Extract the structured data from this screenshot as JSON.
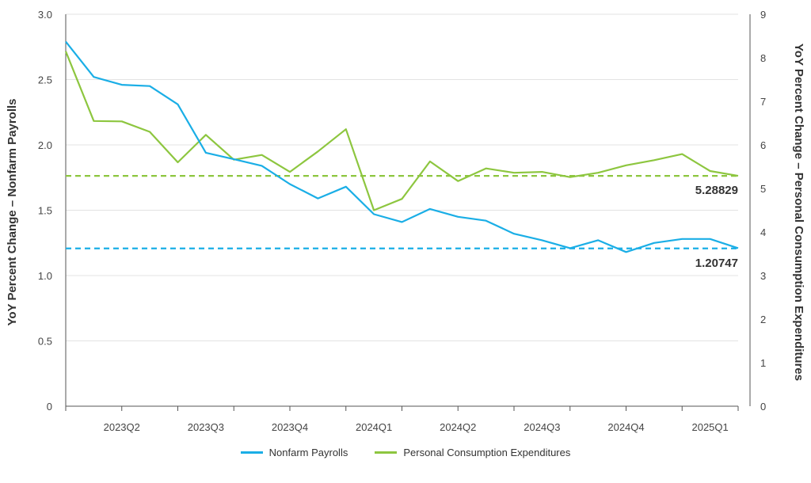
{
  "chart_data": {
    "type": "line",
    "x_tick_labels": [
      "2023Q2",
      "2023Q3",
      "2023Q4",
      "2024Q1",
      "2024Q2",
      "2024Q3",
      "2024Q4",
      "2025Q1"
    ],
    "ylabel_left": "YoY Percent Change – Nonfarm Payrolls",
    "ylabel_right": "YoY Percent Change – Personal Consumption Expenditures",
    "ylim_left": [
      0,
      3
    ],
    "ylim_right": [
      0,
      9
    ],
    "yticks_left": [
      "0",
      "0.5",
      "1.0",
      "1.5",
      "2.0",
      "2.5",
      "3.0"
    ],
    "yticks_right": [
      "0",
      "1",
      "2",
      "3",
      "4",
      "5",
      "6",
      "7",
      "8",
      "9"
    ],
    "grid": true,
    "legend_position": "bottom-center",
    "series": [
      {
        "name": "Nonfarm Payrolls",
        "axis": "left",
        "color": "#1aaee6",
        "values": [
          2.79,
          2.52,
          2.46,
          2.45,
          2.31,
          1.94,
          1.89,
          1.84,
          1.7,
          1.59,
          1.68,
          1.47,
          1.41,
          1.51,
          1.45,
          1.42,
          1.32,
          1.27,
          1.21,
          1.27,
          1.18,
          1.25,
          1.28,
          1.28,
          1.21
        ]
      },
      {
        "name": "Personal Consumption Expenditures",
        "axis": "right",
        "color": "#8dc63f",
        "values": [
          8.15,
          6.55,
          6.54,
          6.3,
          5.6,
          6.23,
          5.66,
          5.77,
          5.38,
          5.85,
          6.36,
          4.5,
          4.76,
          5.62,
          5.17,
          5.46,
          5.36,
          5.38,
          5.26,
          5.36,
          5.53,
          5.65,
          5.79,
          5.4,
          5.29
        ]
      }
    ],
    "reference_lines": [
      {
        "axis": "right",
        "value": 5.28829,
        "label": "5.28829",
        "color": "#8dc63f"
      },
      {
        "axis": "left",
        "value": 1.20747,
        "label": "1.20747",
        "color": "#1aaee6"
      }
    ]
  }
}
